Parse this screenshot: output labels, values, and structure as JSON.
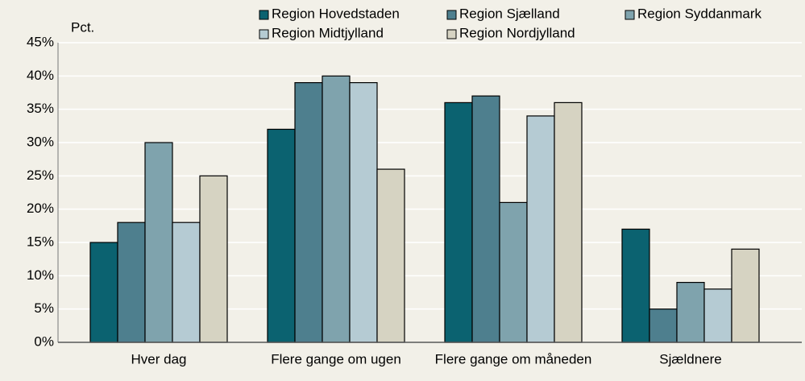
{
  "chart_data": {
    "type": "bar",
    "y_label": "Pct.",
    "categories": [
      "Hver dag",
      "Flere gange om ugen",
      "Flere gange om måneden",
      "Sjældnere"
    ],
    "series": [
      {
        "name": "Region Hovedstaden",
        "color": "#0b6270",
        "values": [
          15,
          32,
          36,
          17
        ]
      },
      {
        "name": "Region Sjælland",
        "color": "#4e7f8e",
        "values": [
          18,
          39,
          37,
          5
        ]
      },
      {
        "name": "Region Syddanmark",
        "color": "#7fa3ad",
        "values": [
          30,
          40,
          21,
          9
        ]
      },
      {
        "name": "Region Midtjylland",
        "color": "#b5cbd3",
        "values": [
          18,
          39,
          34,
          8
        ]
      },
      {
        "name": "Region Nordjylland",
        "color": "#d6d3c2",
        "values": [
          25,
          26,
          36,
          14
        ]
      }
    ],
    "ylim": [
      0,
      45
    ],
    "yticks": [
      {
        "value": 0,
        "label": "0%"
      },
      {
        "value": 5,
        "label": "5%"
      },
      {
        "value": 10,
        "label": "10%"
      },
      {
        "value": 15,
        "label": "15%"
      },
      {
        "value": 20,
        "label": "20%"
      },
      {
        "value": 25,
        "label": "25%"
      },
      {
        "value": 30,
        "label": "30%"
      },
      {
        "value": 35,
        "label": "35%"
      },
      {
        "value": 40,
        "label": "40%"
      },
      {
        "value": 45,
        "label": "45%"
      }
    ],
    "grid": true
  }
}
